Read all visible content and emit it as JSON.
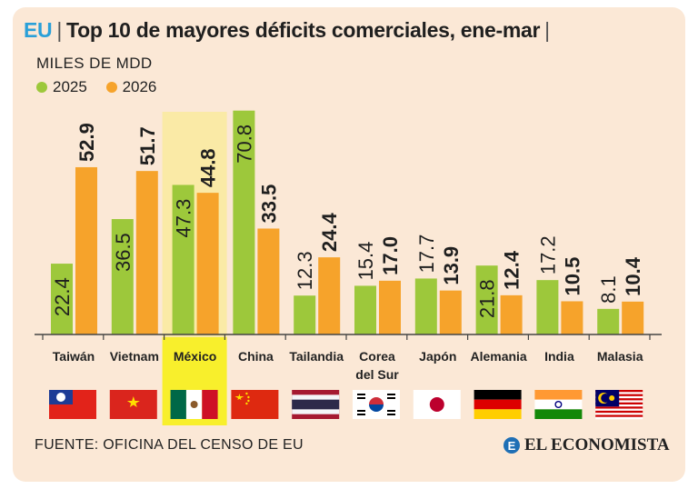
{
  "header": {
    "prefix": "EU",
    "title": "Top 10 de mayores déficits comerciales, ene-mar",
    "unit": "MILES DE MDD"
  },
  "footer": {
    "source": "FUENTE: OFICINA DEL CENSO DE EU",
    "brand": "EL ECONOMISTA",
    "brand_logo": "E"
  },
  "colors": {
    "series_2025": "#9dc83b",
    "series_2026": "#f6a32b",
    "highlight": "#f8ef2c",
    "background": "#fbe8d6"
  },
  "chart_data": {
    "type": "bar",
    "ylim": [
      0,
      71
    ],
    "grid": false,
    "legend_position": "top-left",
    "categories": [
      "Taiwán",
      "Vietnam",
      "México",
      "China",
      "Tailandia",
      "Corea del Sur",
      "Japón",
      "Alemania",
      "India",
      "Malasia"
    ],
    "category_lines": [
      [
        "Taiwán"
      ],
      [
        "Vietnam"
      ],
      [
        "México"
      ],
      [
        "China"
      ],
      [
        "Tailandia"
      ],
      [
        "Corea",
        "del Sur"
      ],
      [
        "Japón"
      ],
      [
        "Alemania"
      ],
      [
        "India"
      ],
      [
        "Malasia"
      ]
    ],
    "highlight_category": "México",
    "series": [
      {
        "name": "2025",
        "values": [
          22.4,
          36.5,
          47.3,
          70.8,
          12.3,
          15.4,
          17.7,
          21.8,
          17.2,
          8.1
        ]
      },
      {
        "name": "2026",
        "values": [
          52.9,
          51.7,
          44.8,
          33.5,
          24.4,
          17.0,
          13.9,
          12.4,
          10.5,
          10.4
        ]
      }
    ],
    "value_labels": [
      [
        "22.4",
        "36.5",
        "47.3",
        "70.8",
        "12.3",
        "15.4",
        "17.7",
        "21.8",
        "17.2",
        "8.1"
      ],
      [
        "52.9",
        "51.7",
        "44.8",
        "33.5",
        "24.4",
        "17.0",
        "13.9",
        "12.4",
        "10.5",
        "10.4"
      ]
    ],
    "flags": [
      "taiwan-flag",
      "vietnam-flag",
      "mexico-flag",
      "china-flag",
      "thailand-flag",
      "south-korea-flag",
      "japan-flag",
      "germany-flag",
      "india-flag",
      "malaysia-flag"
    ]
  }
}
